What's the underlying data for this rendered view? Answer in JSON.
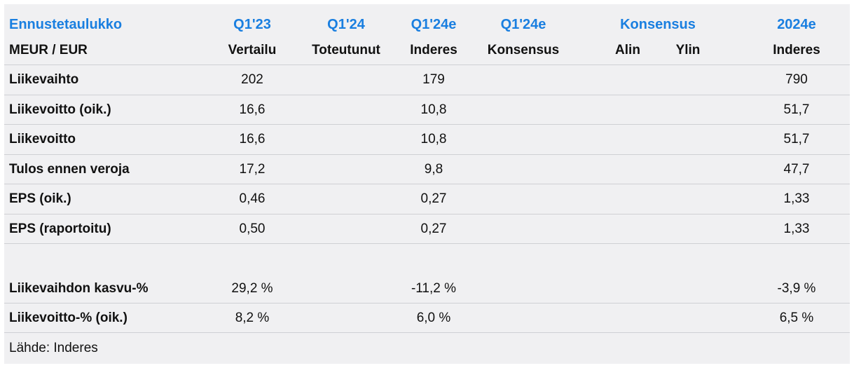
{
  "header": {
    "row1": [
      "Ennustetaulukko",
      "Q1'23",
      "Q1'24",
      "Q1'24e",
      "Q1'24e",
      "Konsensus",
      "2024e"
    ],
    "row2": [
      "MEUR / EUR",
      "Vertailu",
      "Toteutunut",
      "Inderes",
      "Konsensus",
      "Alin",
      "Ylin",
      "Inderes"
    ]
  },
  "rows": [
    {
      "label": "Liikevaihto",
      "values": [
        "202",
        "",
        "179",
        "",
        "",
        "",
        "790"
      ]
    },
    {
      "label": "Liikevoitto (oik.)",
      "values": [
        "16,6",
        "",
        "10,8",
        "",
        "",
        "",
        "51,7"
      ]
    },
    {
      "label": "Liikevoitto",
      "values": [
        "16,6",
        "",
        "10,8",
        "",
        "",
        "",
        "51,7"
      ]
    },
    {
      "label": "Tulos ennen veroja",
      "values": [
        "17,2",
        "",
        "9,8",
        "",
        "",
        "",
        "47,7"
      ]
    },
    {
      "label": "EPS (oik.)",
      "values": [
        "0,46",
        "",
        "0,27",
        "",
        "",
        "",
        "1,33"
      ]
    },
    {
      "label": "EPS (raportoitu)",
      "values": [
        "0,50",
        "",
        "0,27",
        "",
        "",
        "",
        "1,33"
      ]
    },
    {
      "label": "Liikevaihdon kasvu-%",
      "values": [
        "29,2 %",
        "",
        "-11,2 %",
        "",
        "",
        "",
        "-3,9 %"
      ]
    },
    {
      "label": "Liikevoitto-% (oik.)",
      "values": [
        "8,2 %",
        "",
        "6,0 %",
        "",
        "",
        "",
        "6,5 %"
      ]
    }
  ],
  "source": "Lähde: Inderes",
  "colors": {
    "accent": "#1a7fe0",
    "background": "#f0f0f2",
    "divider": "#cfd0d4"
  }
}
